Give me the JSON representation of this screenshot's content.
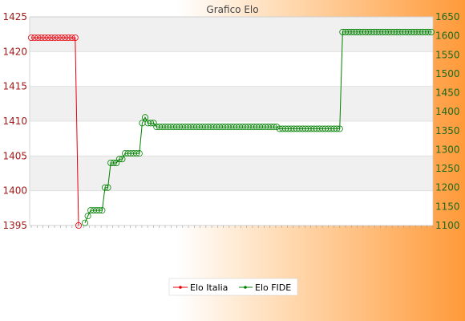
{
  "chart_data": {
    "type": "line",
    "title": "Grafico Elo",
    "xlabel": "",
    "ylabel": "",
    "ylim_left": [
      1395,
      1425
    ],
    "ylim_right": [
      1100,
      1650
    ],
    "left_ticks": [
      1395,
      1400,
      1405,
      1410,
      1415,
      1420,
      1425
    ],
    "right_ticks": [
      1100,
      1150,
      1200,
      1250,
      1300,
      1350,
      1400,
      1450,
      1500,
      1550,
      1600,
      1650
    ],
    "colors": {
      "italia": "#e8000b",
      "fide": "#008000"
    },
    "grid": true,
    "legend_position": "bottom",
    "series": [
      {
        "name": "Elo Italia",
        "axis": "left",
        "color": "#e8000b",
        "values": [
          1422,
          1422,
          1422,
          1422,
          1422,
          1422,
          1422,
          1422,
          1422,
          1422,
          1422,
          1422,
          1422,
          1422,
          1395
        ]
      },
      {
        "name": "Elo FIDE",
        "axis": "right",
        "color": "#008000",
        "values": [
          1107,
          1125,
          1140,
          1140,
          1140,
          1140,
          1140,
          1200,
          1200,
          1265,
          1265,
          1265,
          1275,
          1275,
          1290,
          1290,
          1290,
          1290,
          1290,
          1290,
          1370,
          1385,
          1370,
          1370,
          1370,
          1360,
          1360,
          1360,
          1360,
          1360,
          1360,
          1360,
          1360,
          1360,
          1360,
          1360,
          1360,
          1360,
          1360,
          1360,
          1360,
          1360,
          1360,
          1360,
          1360,
          1360,
          1360,
          1360,
          1360,
          1360,
          1360,
          1360,
          1360,
          1360,
          1360,
          1360,
          1360,
          1360,
          1360,
          1360,
          1360,
          1360,
          1360,
          1360,
          1360,
          1360,
          1360,
          1360,
          1355,
          1355,
          1355,
          1355,
          1355,
          1355,
          1355,
          1355,
          1355,
          1355,
          1355,
          1355,
          1355,
          1355,
          1355,
          1355,
          1355,
          1355,
          1355,
          1355,
          1355,
          1355,
          1610,
          1610,
          1610,
          1610,
          1610,
          1610,
          1610,
          1610,
          1610,
          1610,
          1610,
          1610,
          1610,
          1610,
          1610,
          1610,
          1610,
          1610,
          1610,
          1610,
          1610,
          1610,
          1610,
          1610,
          1610,
          1610,
          1610,
          1610,
          1610,
          1610,
          1610,
          1610
        ]
      }
    ],
    "legend": [
      "Elo Italia",
      "Elo FIDE"
    ]
  }
}
